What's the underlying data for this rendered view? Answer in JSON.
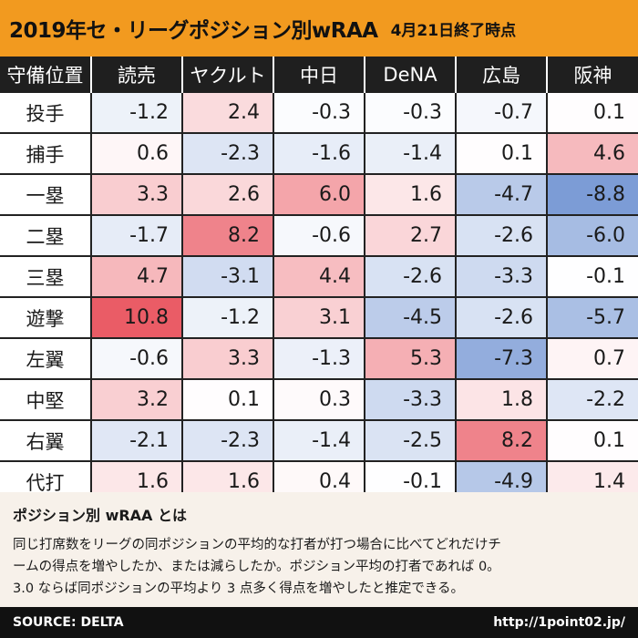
{
  "header": {
    "title": "2019年セ・リーグポジション別wRAA",
    "subtitle": "4月21日終了時点"
  },
  "chart_data": {
    "type": "heatmap",
    "title": "2019年セ・リーグポジション別wRAA",
    "subtitle": "4月21日終了時点",
    "corner_label": "守備位置",
    "columns": [
      "読売",
      "ヤクルト",
      "中日",
      "DeNA",
      "広島",
      "阪神"
    ],
    "rows": [
      {
        "position": "投手",
        "values": [
          -1.2,
          2.4,
          -0.3,
          -0.3,
          -0.7,
          0.1
        ]
      },
      {
        "position": "捕手",
        "values": [
          0.6,
          -2.3,
          -1.6,
          -1.4,
          0.1,
          4.6
        ]
      },
      {
        "position": "一塁",
        "values": [
          3.3,
          2.6,
          6.0,
          1.6,
          -4.7,
          -8.8
        ]
      },
      {
        "position": "二塁",
        "values": [
          -1.7,
          8.2,
          -0.6,
          2.7,
          -2.6,
          -6.0
        ]
      },
      {
        "position": "三塁",
        "values": [
          4.7,
          -3.1,
          4.4,
          -2.6,
          -3.3,
          -0.1
        ]
      },
      {
        "position": "遊撃",
        "values": [
          10.8,
          -1.2,
          3.1,
          -4.5,
          -2.6,
          -5.7
        ]
      },
      {
        "position": "左翼",
        "values": [
          -0.6,
          3.3,
          -1.3,
          5.3,
          -7.3,
          0.7
        ]
      },
      {
        "position": "中堅",
        "values": [
          3.2,
          0.1,
          0.3,
          -3.3,
          1.8,
          -2.2
        ]
      },
      {
        "position": "右翼",
        "values": [
          -2.1,
          -2.3,
          -1.4,
          -2.5,
          8.2,
          0.1
        ]
      },
      {
        "position": "代打",
        "values": [
          1.6,
          1.6,
          0.4,
          -0.1,
          -4.9,
          1.4
        ]
      }
    ],
    "color_scale": {
      "negative": "#4d78c7",
      "neutral": "#ffffff",
      "positive": "#e84a55"
    }
  },
  "info": {
    "title": "ポジション別 wRAA とは",
    "lines": [
      "同じ打席数をリーグの同ポジションの平均的な打者が打つ場合に比べてどれだけチ",
      "ームの得点を増やしたか、または減らしたか。ポジション平均の打者であれば 0。",
      "3.0 ならば同ポジションの平均より 3 点多く得点を増やしたと推定できる。"
    ]
  },
  "footer": {
    "source": "SOURCE: DELTA",
    "url": "http://1point02.jp/"
  }
}
